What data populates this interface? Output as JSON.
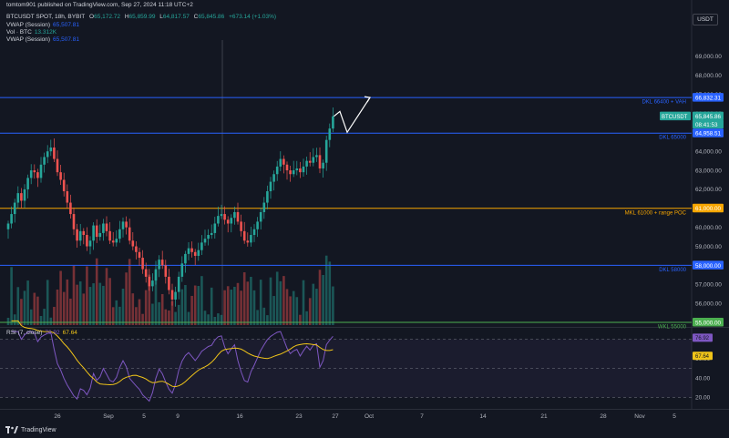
{
  "header": {
    "publish_line": "tomtom901 published on TradingView.com, Sep 27, 2024 11:18 UTC+2",
    "symbol_line": "BTCUSDT SPOT, 18h, BYBIT",
    "ohlc": {
      "o_label": "O",
      "o": "65,172.72",
      "h_label": "H",
      "h": "65,859.99",
      "l_label": "L",
      "l": "64,817.57",
      "c_label": "C",
      "c": "65,845.86",
      "chg": "+673.14 (+1.03%)"
    },
    "indicators": [
      {
        "name": "VWAP (Session)",
        "value": "65,507.81"
      },
      {
        "name": "Vol · BTC",
        "value": "13.312K"
      },
      {
        "name": "VWAP (Session)",
        "value": "65,507.81"
      }
    ],
    "currency": "USDT"
  },
  "footer": {
    "brand": "TradingView"
  },
  "colors": {
    "background": "#131722",
    "up": "#26a69a",
    "down": "#ef5350",
    "blue_level": "#2962ff",
    "orange_level": "#f7a600",
    "green_level": "#4caf50",
    "rsi_line": "#7e57c2",
    "rsi_ma": "#f0c419"
  },
  "chart_data": [
    {
      "type": "candlestick",
      "symbol": "BTCUSDT",
      "ylim": [
        55000,
        70000
      ],
      "y_ticks": [
        "69,000.00",
        "68,000.00",
        "67,000.00",
        "66,000.00",
        "65,000.00",
        "64,000.00",
        "63,000.00",
        "62,000.00",
        "61,000.00",
        "60,000.00",
        "59,000.00",
        "58,000.00",
        "57,000.00",
        "56,000.00",
        "55,000.00"
      ],
      "x_ticks": [
        "26",
        "Sep",
        "5",
        "9",
        "16",
        "23",
        "27",
        "Oct",
        "7",
        "14",
        "21",
        "28",
        "Nov",
        "5"
      ],
      "close": [
        60200,
        60700,
        61300,
        61800,
        61400,
        62000,
        62600,
        63000,
        62900,
        62600,
        63300,
        63700,
        64000,
        64200,
        63600,
        62900,
        62500,
        61900,
        61300,
        60700,
        59900,
        59300,
        59800,
        59600,
        59000,
        59300,
        60100,
        59500,
        59700,
        60200,
        59800,
        59300,
        59200,
        59400,
        59900,
        60300,
        60000,
        59300,
        59000,
        58700,
        58400,
        57800,
        57400,
        56900,
        57200,
        57800,
        58300,
        58000,
        57400,
        56700,
        56200,
        56600,
        57400,
        58100,
        58600,
        58900,
        58700,
        58500,
        58800,
        59200,
        59400,
        59600,
        59700,
        60200,
        60600,
        60700,
        60400,
        60200,
        60500,
        60800,
        60300,
        59800,
        59300,
        59200,
        59600,
        59900,
        60300,
        60800,
        61300,
        61900,
        62400,
        62800,
        63200,
        63600,
        63300,
        63000,
        62800,
        63000,
        63100,
        62900,
        63200,
        63500,
        63400,
        63700,
        63800,
        63100,
        63400,
        64600,
        65200,
        65846
      ],
      "price_labels": [
        {
          "text": "66,832.31",
          "color": "#2962ff"
        },
        {
          "text": "65,845.86",
          "sub": "BTCUSDT",
          "color": "#26a69a"
        },
        {
          "text": "08:41:53",
          "color": "#26a69a"
        },
        {
          "text": "64,958.51",
          "color": "#2962ff"
        },
        {
          "text": "61,000.00",
          "color": "#f7a600"
        },
        {
          "text": "58,000.00",
          "color": "#2962ff"
        },
        {
          "text": "55,000.00",
          "color": "#4caf50"
        }
      ],
      "levels": [
        {
          "price": 66832.31,
          "label": "DKL 66400 + VAH",
          "color": "#2962ff"
        },
        {
          "price": 64958.51,
          "label": "DKL 65000",
          "color": "#2962ff"
        },
        {
          "price": 61000,
          "label": "MKL 61000 + range POC",
          "color": "#f7a600"
        },
        {
          "price": 58000,
          "label": "DKL 58000",
          "color": "#2962ff"
        },
        {
          "price": 55000,
          "label": "WKL 55000",
          "color": "#4caf50"
        }
      ]
    },
    {
      "type": "line",
      "title": "RSI (7, close)",
      "value_rsi": "76.92",
      "value_ma": "67.64",
      "ylim": [
        10,
        90
      ],
      "y_ticks": [
        "80.00",
        "60.00",
        "40.00",
        "20.00"
      ],
      "bands": [
        80,
        50,
        20
      ]
    }
  ]
}
